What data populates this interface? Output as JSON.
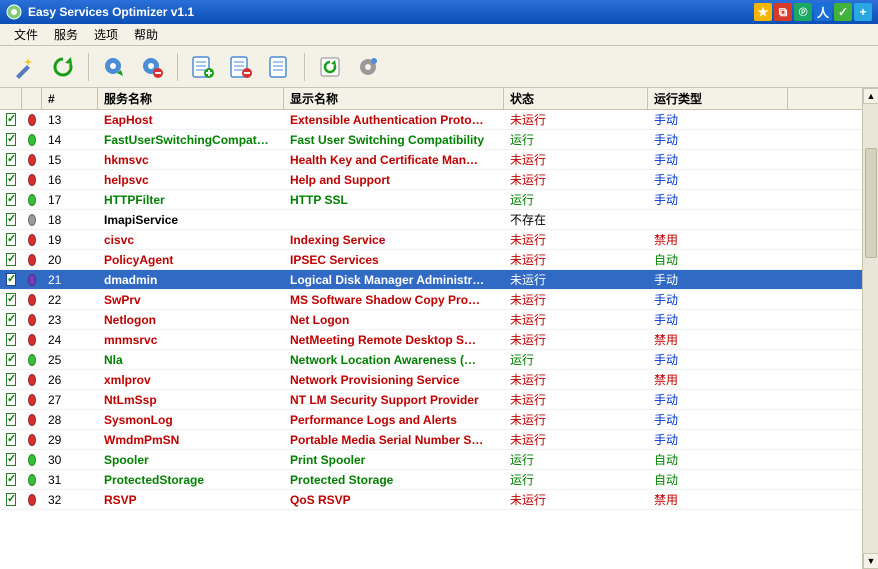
{
  "window": {
    "title": "Easy Services Optimizer v1.1"
  },
  "tray_colors": [
    "#f7b500",
    "#d63b2a",
    "#1aa864",
    "#1a6fd6",
    "#40b33b",
    "#2aa6e0"
  ],
  "menu": [
    "文件",
    "服务",
    "选项",
    "帮助"
  ],
  "columns": {
    "num": "#",
    "svc": "服务名称",
    "disp": "显示名称",
    "state": "状态",
    "start": "运行类型"
  },
  "state_colors": {
    "running": "#008000",
    "stopped": "#c00000",
    "missing": "#000000"
  },
  "start_colors": {
    "manual": "#0033cc",
    "auto": "#008000",
    "disabled": "#c00000"
  },
  "dot_colors": {
    "green": "#35c035",
    "red": "#d83030",
    "gray": "#9a9a9a",
    "purple": "#7a3cc0"
  },
  "labels": {
    "running": "运行",
    "stopped": "未运行",
    "missing": "不存在",
    "manual": "手动",
    "auto": "自动",
    "disabled": "禁用"
  },
  "rows": [
    {
      "n": 13,
      "svc": "EapHost",
      "disp": "Extensible Authentication Proto…",
      "state": "stopped",
      "start": "manual",
      "dot": "red",
      "sel": false
    },
    {
      "n": 14,
      "svc": "FastUserSwitchingCompat…",
      "disp": "Fast User Switching Compatibility",
      "state": "running",
      "start": "manual",
      "dot": "green",
      "sel": false
    },
    {
      "n": 15,
      "svc": "hkmsvc",
      "disp": "Health Key and Certificate Man…",
      "state": "stopped",
      "start": "manual",
      "dot": "red",
      "sel": false
    },
    {
      "n": 16,
      "svc": "helpsvc",
      "disp": "Help and Support",
      "state": "stopped",
      "start": "manual",
      "dot": "red",
      "sel": false
    },
    {
      "n": 17,
      "svc": "HTTPFilter",
      "disp": "HTTP SSL",
      "state": "running",
      "start": "manual",
      "dot": "green",
      "sel": false
    },
    {
      "n": 18,
      "svc": "ImapiService",
      "disp": "",
      "state": "missing",
      "start": "",
      "dot": "gray",
      "sel": false
    },
    {
      "n": 19,
      "svc": "cisvc",
      "disp": "Indexing Service",
      "state": "stopped",
      "start": "disabled",
      "dot": "red",
      "sel": false
    },
    {
      "n": 20,
      "svc": "PolicyAgent",
      "disp": "IPSEC Services",
      "state": "stopped",
      "start": "auto",
      "dot": "red",
      "sel": false
    },
    {
      "n": 21,
      "svc": "dmadmin",
      "disp": "Logical Disk Manager Administr…",
      "state": "stopped",
      "start": "manual",
      "dot": "purple",
      "sel": true
    },
    {
      "n": 22,
      "svc": "SwPrv",
      "disp": "MS Software Shadow Copy Pro…",
      "state": "stopped",
      "start": "manual",
      "dot": "red",
      "sel": false
    },
    {
      "n": 23,
      "svc": "Netlogon",
      "disp": "Net Logon",
      "state": "stopped",
      "start": "manual",
      "dot": "red",
      "sel": false
    },
    {
      "n": 24,
      "svc": "mnmsrvc",
      "disp": "NetMeeting Remote Desktop S…",
      "state": "stopped",
      "start": "disabled",
      "dot": "red",
      "sel": false
    },
    {
      "n": 25,
      "svc": "Nla",
      "disp": "Network Location Awareness (…",
      "state": "running",
      "start": "manual",
      "dot": "green",
      "sel": false
    },
    {
      "n": 26,
      "svc": "xmlprov",
      "disp": "Network Provisioning Service",
      "state": "stopped",
      "start": "disabled",
      "dot": "red",
      "sel": false
    },
    {
      "n": 27,
      "svc": "NtLmSsp",
      "disp": "NT LM Security Support Provider",
      "state": "stopped",
      "start": "manual",
      "dot": "red",
      "sel": false
    },
    {
      "n": 28,
      "svc": "SysmonLog",
      "disp": "Performance Logs and Alerts",
      "state": "stopped",
      "start": "manual",
      "dot": "red",
      "sel": false
    },
    {
      "n": 29,
      "svc": "WmdmPmSN",
      "disp": "Portable Media Serial Number S…",
      "state": "stopped",
      "start": "manual",
      "dot": "red",
      "sel": false
    },
    {
      "n": 30,
      "svc": "Spooler",
      "disp": "Print Spooler",
      "state": "running",
      "start": "auto",
      "dot": "green",
      "sel": false
    },
    {
      "n": 31,
      "svc": "ProtectedStorage",
      "disp": "Protected Storage",
      "state": "running",
      "start": "auto",
      "dot": "green",
      "sel": false
    },
    {
      "n": 32,
      "svc": "RSVP",
      "disp": "QoS RSVP",
      "state": "stopped",
      "start": "disabled",
      "dot": "red",
      "sel": false
    }
  ]
}
